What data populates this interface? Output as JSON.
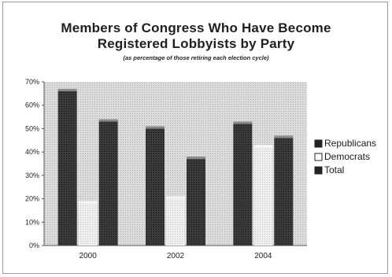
{
  "chart_data": {
    "type": "bar",
    "title": "Members of Congress Who Have Become Registered Lobbyists by Party",
    "title_lines": [
      "Members of Congress Who Have Become",
      "Registered Lobbyists by Party"
    ],
    "subtitle": "(as percentage of those retiring each election cycle)",
    "xlabel": "",
    "ylabel": "",
    "categories": [
      "2000",
      "2002",
      "2004"
    ],
    "series": [
      {
        "name": "Republicans",
        "values": [
          66,
          50,
          52
        ],
        "color": "#2e2e2e"
      },
      {
        "name": "Democrats",
        "values": [
          18,
          20,
          42
        ],
        "color": "#e8e8e8"
      },
      {
        "name": "Total",
        "values": [
          53,
          37,
          46
        ],
        "color": "#2e2e2e"
      }
    ],
    "ylim": [
      0,
      70
    ],
    "yticks": [
      "0%",
      "10%",
      "20%",
      "30%",
      "40%",
      "50%",
      "60%",
      "70%"
    ],
    "grid": false,
    "legend_position": "right",
    "plot_background": "#d9d9d9"
  }
}
